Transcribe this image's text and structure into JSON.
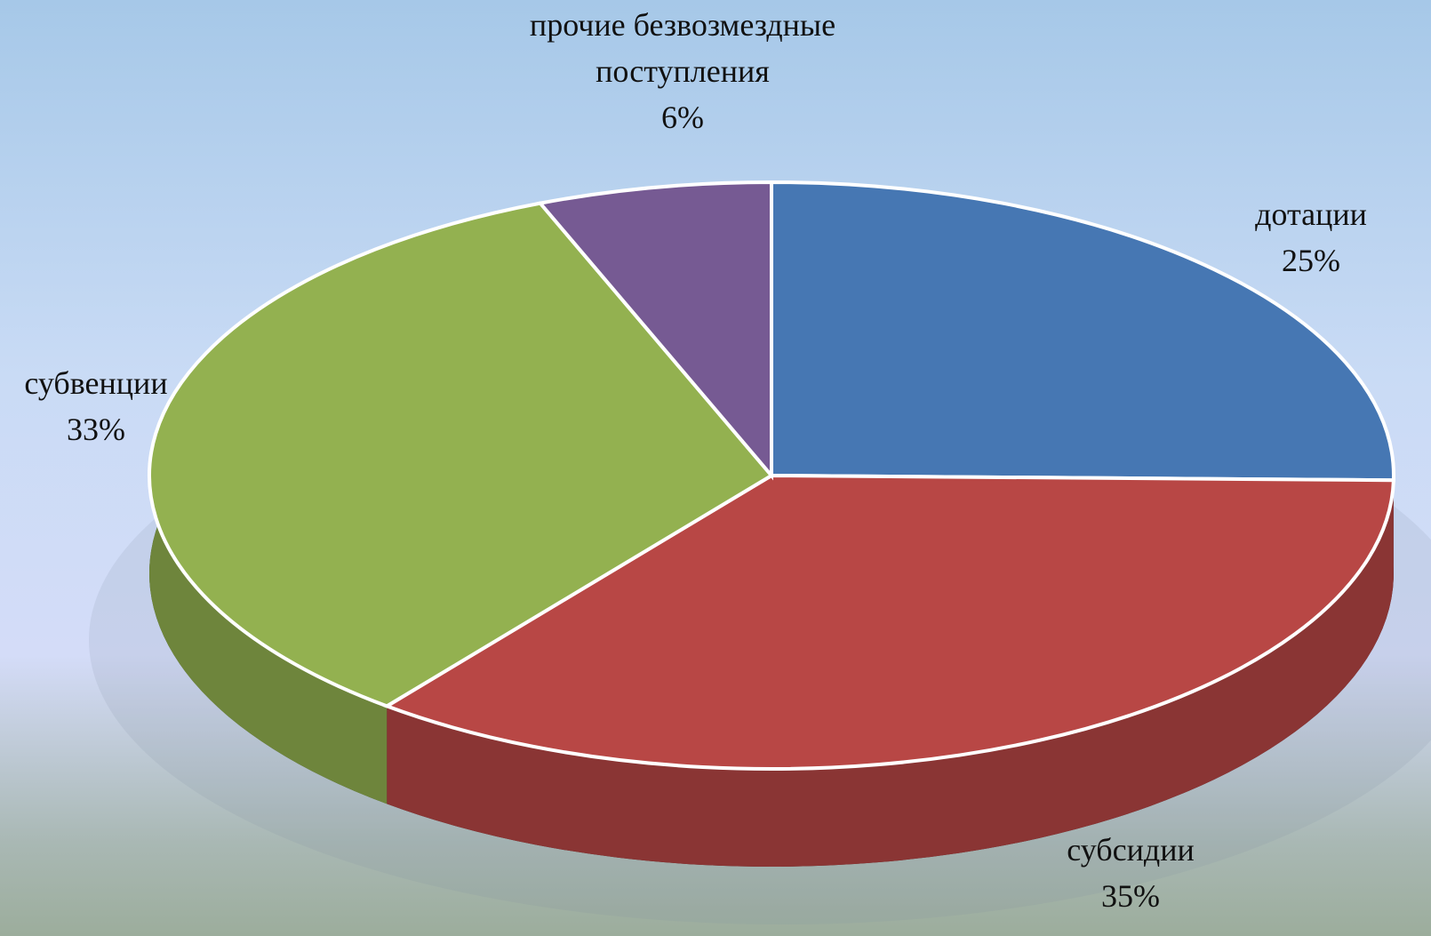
{
  "chart_data": {
    "type": "pie",
    "categories": [
      "дотации",
      "субсидии",
      "субвенции",
      "прочие безвозмездные поступления"
    ],
    "values": [
      25,
      35,
      33,
      6
    ],
    "value_labels": [
      "25%",
      "35%",
      "33%",
      "6%"
    ],
    "colors": [
      "#4677b3",
      "#b84745",
      "#93b150",
      "#765a93"
    ]
  }
}
